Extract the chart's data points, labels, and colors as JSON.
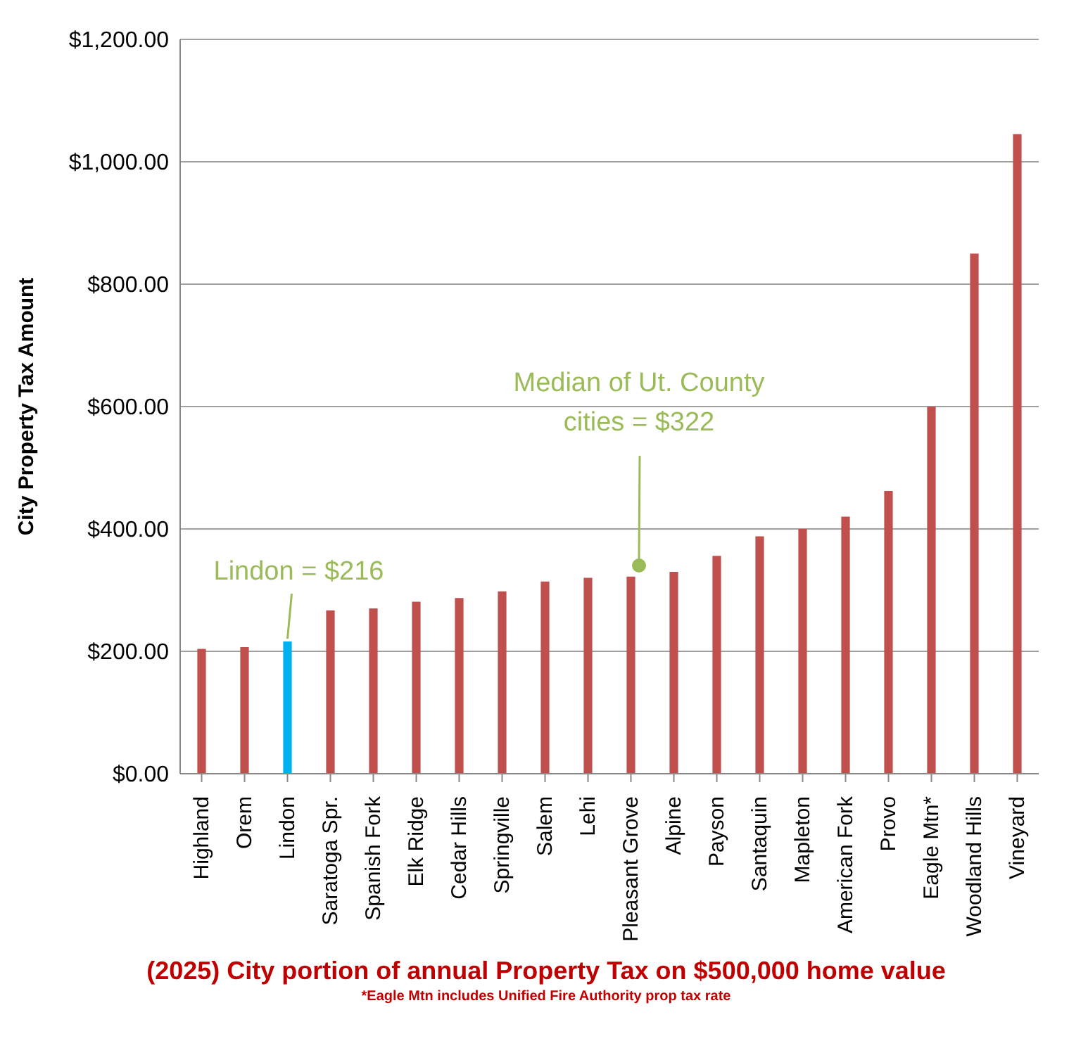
{
  "chart_data": {
    "type": "bar",
    "title": "(2025) City portion of annual Property Tax on $500,000 home value",
    "ylabel": "City Property Tax Amount",
    "categories": [
      "Highland",
      "Orem",
      "Lindon",
      "Saratoga Spr.",
      "Spanish Fork",
      "Elk Ridge",
      "Cedar Hills",
      "Springville",
      "Salem",
      "Lehi",
      "Pleasant Grove",
      "Alpine",
      "Payson",
      "Santaquin",
      "Mapleton",
      "American Fork",
      "Provo",
      "Eagle Mtn*",
      "Woodland Hills",
      "Vineyard"
    ],
    "values": [
      204,
      207,
      216,
      267,
      270,
      281,
      287,
      298,
      314,
      320,
      322,
      330,
      356,
      388,
      400,
      420,
      462,
      600,
      850,
      1045
    ],
    "colors": [
      "#c0504d",
      "#c0504d",
      "#00b0f0",
      "#c0504d",
      "#c0504d",
      "#c0504d",
      "#c0504d",
      "#c0504d",
      "#c0504d",
      "#c0504d",
      "#c0504d",
      "#c0504d",
      "#c0504d",
      "#c0504d",
      "#c0504d",
      "#c0504d",
      "#c0504d",
      "#c0504d",
      "#c0504d",
      "#c0504d"
    ],
    "ylim": [
      0,
      1200
    ],
    "yticks": [
      {
        "value": 0,
        "label": "$0.00"
      },
      {
        "value": 200,
        "label": "$200.00"
      },
      {
        "value": 400,
        "label": "$400.00"
      },
      {
        "value": 600,
        "label": "$600.00"
      },
      {
        "value": 800,
        "label": "$800.00"
      },
      {
        "value": 1000,
        "label": "$1,000.00"
      },
      {
        "value": 1200,
        "label": "$1,200.00"
      }
    ],
    "grid": "y",
    "legend": false,
    "annotations": [
      {
        "text": "Lindon = $216",
        "x": "Lindon",
        "y": 216
      },
      "Median of Ut. County\ncities = $322",
      "*Eagle Mtn includes Unified Fire Authority prop tax rate"
    ]
  }
}
